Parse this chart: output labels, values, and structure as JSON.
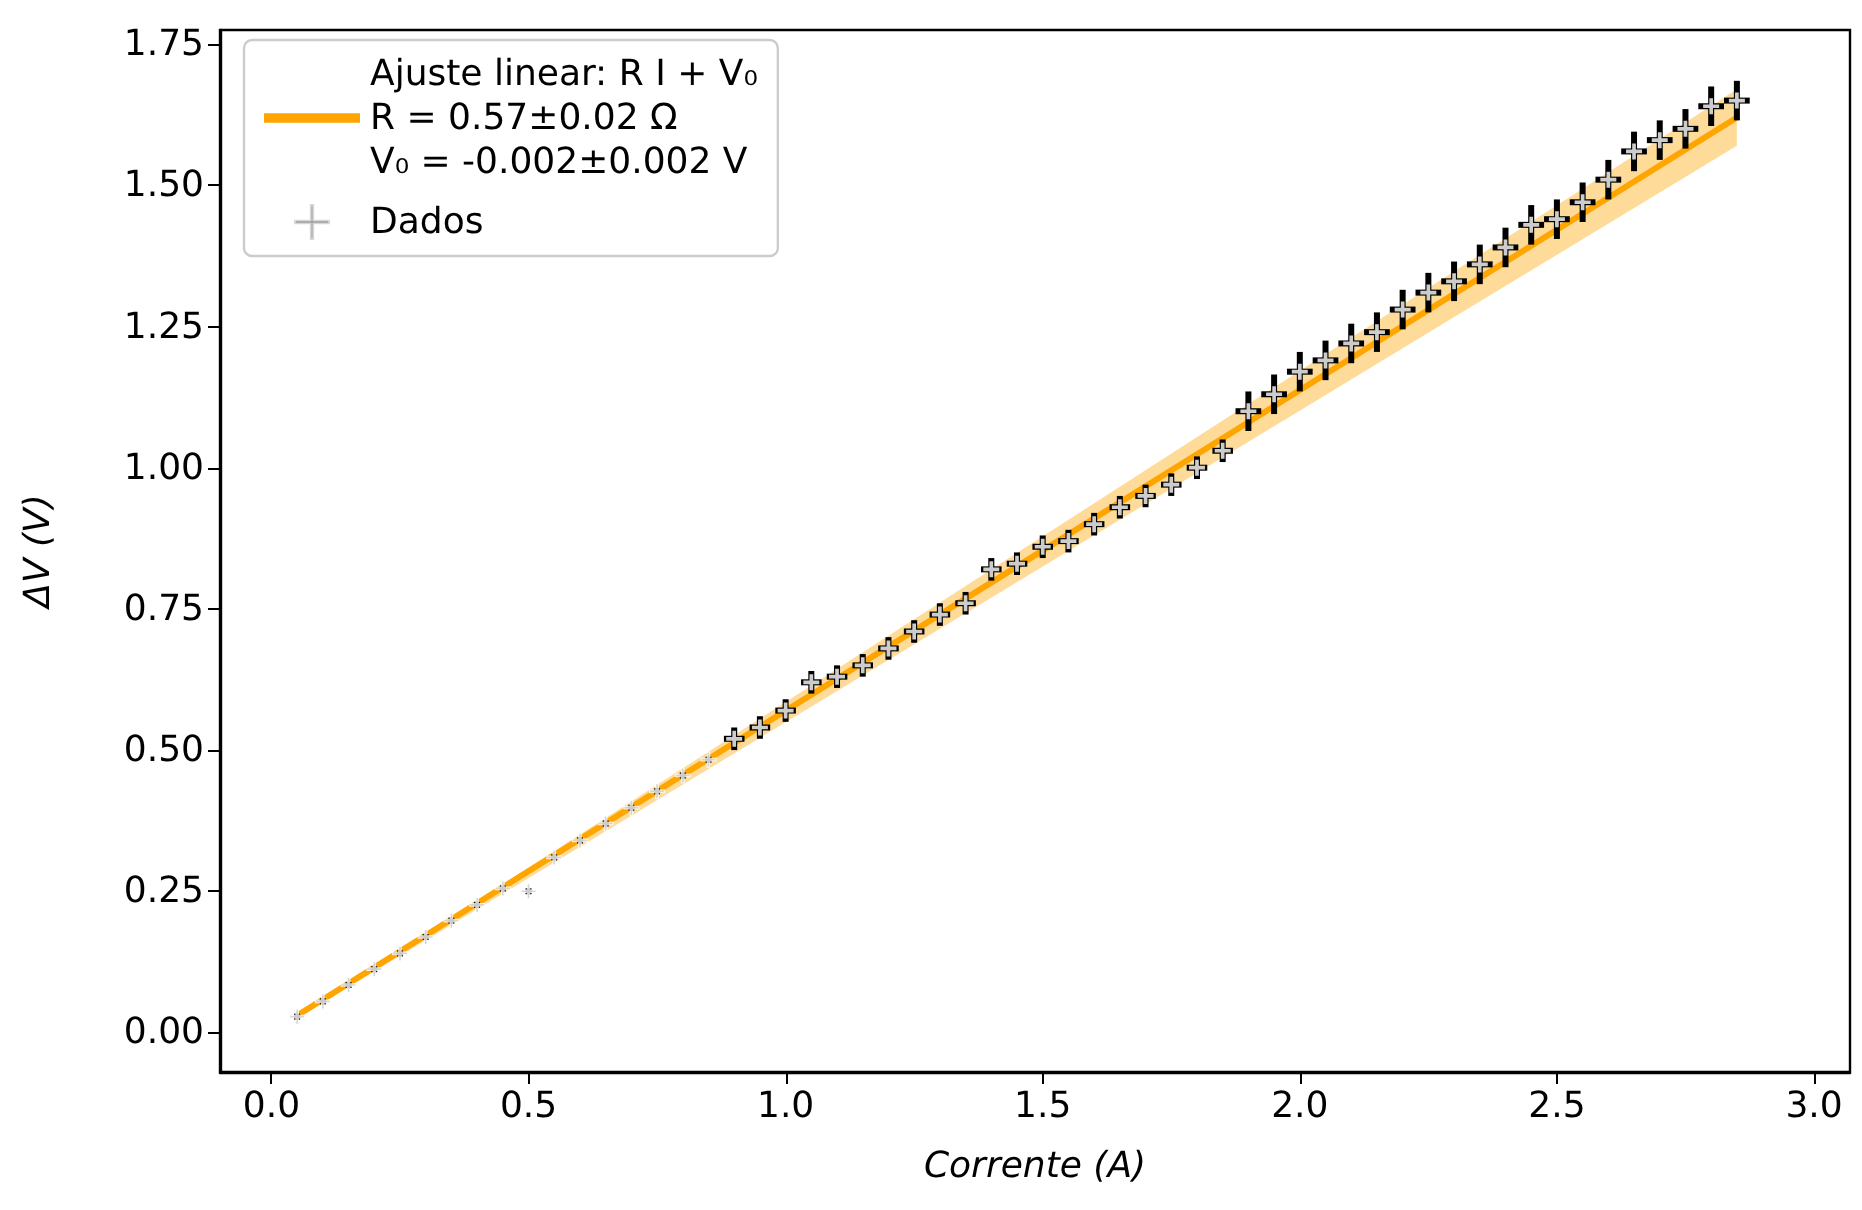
{
  "chart_data": {
    "type": "scatter",
    "xlabel": "Corrente (A)",
    "ylabel": "ΔV (V)",
    "legend": "top left",
    "grid": false,
    "xlim": [
      -0.1,
      3.07
    ],
    "ylim": [
      -0.07,
      1.775
    ],
    "xticks": [
      {
        "value": 0,
        "label": "0.0"
      },
      {
        "value": 0.5,
        "label": "0.5"
      },
      {
        "value": 1,
        "label": "1.0"
      },
      {
        "value": 1.5,
        "label": "1.5"
      },
      {
        "value": 2,
        "label": "2.0"
      },
      {
        "value": 2.5,
        "label": "2.5"
      },
      {
        "value": 3,
        "label": "3.0"
      }
    ],
    "yticks": [
      {
        "value": 0,
        "label": "0.00"
      },
      {
        "value": 0.25,
        "label": "0.25"
      },
      {
        "value": 0.5,
        "label": "0.50"
      },
      {
        "value": 0.75,
        "label": "0.75"
      },
      {
        "value": 1,
        "label": "1.00"
      },
      {
        "value": 1.25,
        "label": "1.25"
      },
      {
        "value": 1.5,
        "label": "1.50"
      },
      {
        "value": 1.75,
        "label": "1.75"
      }
    ],
    "series": [
      {
        "type": "line",
        "name": "Ajuste linear: R I + V₀\nR = 0.57±0.02 Ω\nV₀ = -0.002±0.002 V",
        "color": "#ffa500",
        "marker": "none",
        "line_style": "solid",
        "x": [
          0.05,
          2.85
        ],
        "values": [
          0.03,
          1.62
        ],
        "lower": [
          0.025,
          1.57
        ],
        "upper": [
          0.028,
          1.67
        ]
      },
      {
        "name": "Dados",
        "color": "#000000",
        "marker": "cross",
        "x": [
          0.05,
          0.1,
          0.15,
          0.2,
          0.25,
          0.3,
          0.35,
          0.4,
          0.45,
          0.5,
          0.55,
          0.6,
          0.65,
          0.7,
          0.75,
          0.8,
          0.85,
          0.9,
          0.95,
          1.0,
          1.05,
          1.1,
          1.15,
          1.2,
          1.25,
          1.3,
          1.35,
          1.4,
          1.45,
          1.5,
          1.55,
          1.6,
          1.65,
          1.7,
          1.75,
          1.8,
          1.85,
          1.9,
          1.95,
          2.0,
          2.05,
          2.1,
          2.15,
          2.2,
          2.25,
          2.3,
          2.35,
          2.4,
          2.45,
          2.5,
          2.55,
          2.6,
          2.65,
          2.7,
          2.75,
          2.8,
          2.85
        ],
        "values": [
          0.028,
          0.055,
          0.084,
          0.112,
          0.14,
          0.169,
          0.198,
          0.226,
          0.255,
          0.25,
          0.31,
          0.34,
          0.37,
          0.398,
          0.427,
          0.455,
          0.483,
          0.52,
          0.54,
          0.57,
          0.62,
          0.63,
          0.65,
          0.68,
          0.71,
          0.74,
          0.76,
          0.82,
          0.83,
          0.86,
          0.87,
          0.9,
          0.93,
          0.95,
          0.97,
          1.0,
          1.03,
          1.1,
          1.13,
          1.17,
          1.19,
          1.22,
          1.24,
          1.28,
          1.31,
          1.33,
          1.36,
          1.39,
          1.43,
          1.44,
          1.47,
          1.51,
          1.56,
          1.58,
          1.6,
          1.64,
          1.65
        ],
        "errors": [
          0.005,
          0.005,
          0.005,
          0.005,
          0.005,
          0.005,
          0.005,
          0.005,
          0.005,
          0.005,
          0.005,
          0.005,
          0.005,
          0.005,
          0.005,
          0.005,
          0.005,
          0.02,
          0.02,
          0.02,
          0.02,
          0.02,
          0.02,
          0.02,
          0.02,
          0.02,
          0.02,
          0.02,
          0.02,
          0.02,
          0.02,
          0.02,
          0.02,
          0.02,
          0.02,
          0.02,
          0.02,
          0.035,
          0.035,
          0.035,
          0.035,
          0.035,
          0.035,
          0.035,
          0.035,
          0.035,
          0.035,
          0.035,
          0.035,
          0.035,
          0.035,
          0.035,
          0.035,
          0.035,
          0.035,
          0.035,
          0.035
        ],
        "xerrors": [
          0.005,
          0.005,
          0.005,
          0.005,
          0.005,
          0.005,
          0.005,
          0.005,
          0.005,
          0.005,
          0.005,
          0.005,
          0.005,
          0.005,
          0.005,
          0.005,
          0.005,
          0.02,
          0.02,
          0.02,
          0.02,
          0.02,
          0.02,
          0.02,
          0.02,
          0.02,
          0.02,
          0.02,
          0.02,
          0.02,
          0.02,
          0.02,
          0.02,
          0.02,
          0.02,
          0.02,
          0.02,
          0.025,
          0.025,
          0.025,
          0.025,
          0.025,
          0.025,
          0.025,
          0.025,
          0.025,
          0.025,
          0.025,
          0.025,
          0.025,
          0.025,
          0.025,
          0.025,
          0.025,
          0.025,
          0.025,
          0.025
        ]
      }
    ]
  }
}
